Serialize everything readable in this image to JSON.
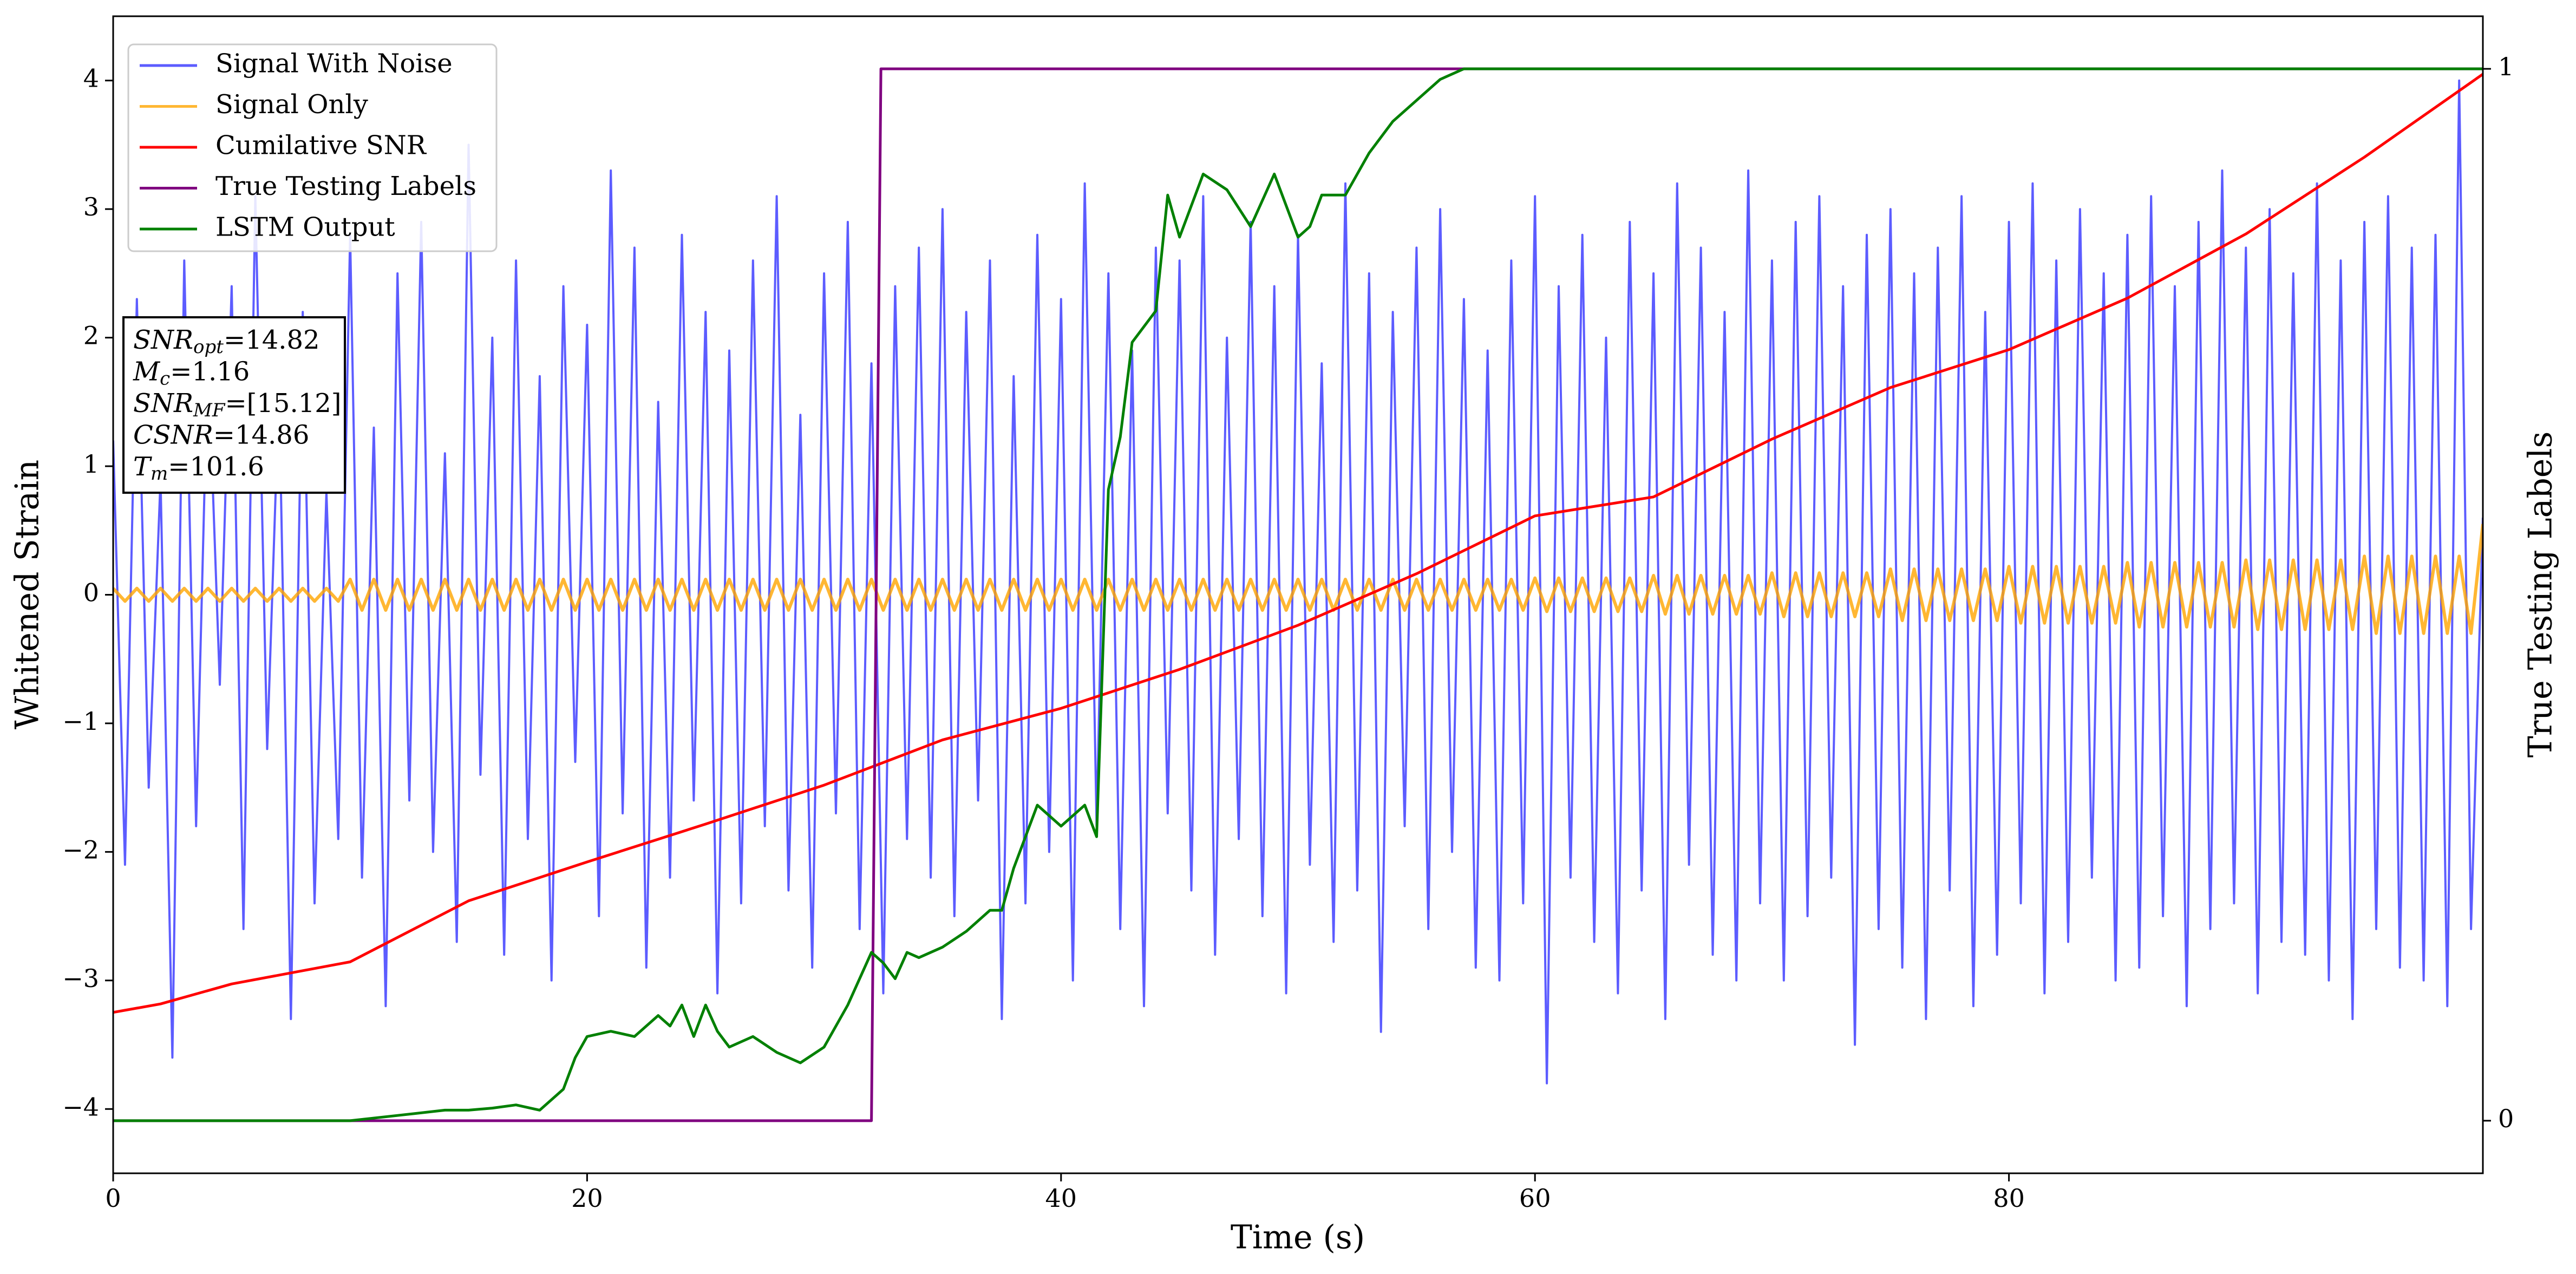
{
  "chart_data": {
    "type": "line",
    "xlabel": "Time (s)",
    "ylabel": "Whitened Strain",
    "y2label": "True Testing Labels",
    "xlim": [
      0,
      100
    ],
    "xticks": [
      0,
      20,
      40,
      60,
      80
    ],
    "ylim": [
      -4.5,
      4.5
    ],
    "yticks": [
      {
        "value": -4,
        "label": "−4"
      },
      {
        "value": -3,
        "label": "−3"
      },
      {
        "value": -2,
        "label": "−2"
      },
      {
        "value": -1,
        "label": "−1"
      },
      0,
      1,
      2,
      3,
      4
    ],
    "y2lim": [
      -0.05,
      1.05
    ],
    "y2ticks": [
      0,
      1
    ],
    "grid": false,
    "legend": "upper left",
    "x": [
      0,
      0.5,
      1,
      1.5,
      2,
      2.5,
      3,
      3.5,
      4,
      4.5,
      5,
      5.5,
      6,
      6.5,
      7,
      7.5,
      8,
      8.5,
      9,
      9.5,
      10,
      10.5,
      11,
      11.5,
      12,
      12.5,
      13,
      13.5,
      14,
      14.5,
      15,
      15.5,
      16,
      16.5,
      17,
      17.5,
      18,
      18.5,
      19,
      19.5,
      20,
      20.5,
      21,
      21.5,
      22,
      22.5,
      23,
      23.5,
      24,
      24.5,
      25,
      25.5,
      26,
      26.5,
      27,
      27.5,
      28,
      28.5,
      29,
      29.5,
      30,
      30.5,
      31,
      31.5,
      32,
      32.5,
      33,
      33.5,
      34,
      34.5,
      35,
      35.5,
      36,
      36.5,
      37,
      37.5,
      38,
      38.5,
      39,
      39.5,
      40,
      40.5,
      41,
      41.5,
      42,
      42.5,
      43,
      43.5,
      44,
      44.5,
      45,
      45.5,
      46,
      46.5,
      47,
      47.5,
      48,
      48.5,
      49,
      49.5,
      50,
      50.5,
      51,
      51.5,
      52,
      52.5,
      53,
      53.5,
      54,
      54.5,
      55,
      55.5,
      56,
      56.5,
      57,
      57.5,
      58,
      58.5,
      59,
      59.5,
      60,
      60.5,
      61,
      61.5,
      62,
      62.5,
      63,
      63.5,
      64,
      64.5,
      65,
      65.5,
      66,
      66.5,
      67,
      67.5,
      68,
      68.5,
      69,
      69.5,
      70,
      70.5,
      71,
      71.5,
      72,
      72.5,
      73,
      73.5,
      74,
      74.5,
      75,
      75.5,
      76,
      76.5,
      77,
      77.5,
      78,
      78.5,
      79,
      79.5,
      80,
      80.5,
      81,
      81.5,
      82,
      82.5,
      83,
      83.5,
      84,
      84.5,
      85,
      85.5,
      86,
      86.5,
      87,
      87.5,
      88,
      88.5,
      89,
      89.5,
      90,
      90.5,
      91,
      91.5,
      92,
      92.5,
      93,
      93.5,
      94,
      94.5,
      95,
      95.5,
      96,
      96.5,
      97,
      97.5,
      98,
      98.5,
      99,
      99.5,
      100
    ],
    "series": [
      {
        "name": "Signal With Noise",
        "color": "#3333ff",
        "values": [
          1.2,
          -2.1,
          2.3,
          -1.5,
          0.9,
          -3.6,
          2.6,
          -1.8,
          1.9,
          -0.7,
          2.4,
          -2.6,
          3.1,
          -1.2,
          1.6,
          -3.3,
          2.2,
          -2.4,
          0.8,
          -1.9,
          2.8,
          -2.2,
          1.3,
          -3.2,
          2.5,
          -1.6,
          2.9,
          -2.0,
          1.1,
          -2.7,
          3.5,
          -1.4,
          2.0,
          -2.8,
          2.6,
          -1.9,
          1.7,
          -3.0,
          2.4,
          -1.3,
          2.1,
          -2.5,
          3.3,
          -1.7,
          2.7,
          -2.9,
          1.5,
          -2.2,
          2.8,
          -1.6,
          2.2,
          -3.1,
          1.9,
          -2.4,
          2.6,
          -1.8,
          3.1,
          -2.3,
          1.4,
          -2.9,
          2.5,
          -1.7,
          2.9,
          -2.6,
          1.8,
          -3.1,
          2.4,
          -1.9,
          2.7,
          -2.2,
          3.0,
          -2.5,
          2.2,
          -1.6,
          2.6,
          -3.3,
          1.7,
          -2.4,
          2.8,
          -2.0,
          2.3,
          -3.0,
          3.2,
          -1.8,
          2.5,
          -2.6,
          1.9,
          -3.2,
          2.7,
          -1.7,
          2.6,
          -2.3,
          3.1,
          -2.8,
          2.0,
          -1.9,
          2.9,
          -2.5,
          2.4,
          -3.1,
          2.8,
          -2.1,
          1.8,
          -2.7,
          3.2,
          -2.3,
          2.5,
          -3.4,
          2.2,
          -1.8,
          2.7,
          -2.6,
          3.0,
          -2.0,
          2.3,
          -2.9,
          1.9,
          -3.0,
          2.6,
          -2.4,
          3.1,
          -3.8,
          2.4,
          -2.2,
          2.8,
          -2.7,
          2.0,
          -3.1,
          2.9,
          -2.3,
          2.5,
          -3.3,
          3.2,
          -2.1,
          2.7,
          -2.8,
          2.2,
          -3.0,
          3.3,
          -2.4,
          2.6,
          -3.0,
          2.9,
          -2.5,
          3.1,
          -2.2,
          2.4,
          -3.5,
          2.8,
          -2.6,
          3.0,
          -2.9,
          2.5,
          -3.3,
          2.7,
          -2.3,
          3.1,
          -3.2,
          2.2,
          -2.8,
          2.9,
          -2.4,
          3.2,
          -3.1,
          2.6,
          -2.7,
          3.0,
          -2.2,
          2.5,
          -3.0,
          2.8,
          -2.9,
          3.1,
          -2.5,
          2.4,
          -3.2,
          2.9,
          -2.6,
          3.3,
          -2.4,
          2.7,
          -3.1,
          3.0,
          -2.7,
          2.5,
          -2.8,
          3.2,
          -3.0,
          2.6,
          -3.3,
          2.9,
          -2.6,
          3.1,
          -2.9,
          2.7,
          -3.0,
          2.8,
          -3.2,
          4.0,
          -2.6,
          0.6
        ]
      },
      {
        "name": "Signal Only",
        "color": "orange",
        "values": [
          0.05,
          -0.05,
          0.05,
          -0.05,
          0.05,
          -0.05,
          0.05,
          -0.05,
          0.05,
          -0.05,
          0.05,
          -0.05,
          0.05,
          -0.05,
          0.05,
          -0.05,
          0.05,
          -0.05,
          0.05,
          -0.05,
          0.12,
          -0.12,
          0.12,
          -0.12,
          0.12,
          -0.12,
          0.12,
          -0.12,
          0.12,
          -0.12,
          0.12,
          -0.12,
          0.12,
          -0.12,
          0.12,
          -0.12,
          0.12,
          -0.12,
          0.12,
          -0.12,
          0.12,
          -0.12,
          0.12,
          -0.12,
          0.12,
          -0.12,
          0.12,
          -0.12,
          0.12,
          -0.12,
          0.12,
          -0.12,
          0.12,
          -0.12,
          0.12,
          -0.12,
          0.12,
          -0.12,
          0.12,
          -0.12,
          0.12,
          -0.12,
          0.12,
          -0.12,
          0.12,
          -0.12,
          0.12,
          -0.12,
          0.12,
          -0.12,
          0.12,
          -0.12,
          0.12,
          -0.12,
          0.12,
          -0.12,
          0.12,
          -0.12,
          0.12,
          -0.12,
          0.12,
          -0.12,
          0.12,
          -0.12,
          0.12,
          -0.12,
          0.12,
          -0.12,
          0.12,
          -0.12,
          0.12,
          -0.12,
          0.12,
          -0.12,
          0.12,
          -0.12,
          0.12,
          -0.12,
          0.12,
          -0.12,
          0.12,
          -0.12,
          0.12,
          -0.12,
          0.12,
          -0.12,
          0.12,
          -0.12,
          0.12,
          -0.12,
          0.12,
          -0.12,
          0.12,
          -0.12,
          0.12,
          -0.12,
          0.12,
          -0.12,
          0.12,
          -0.12,
          0.13,
          -0.13,
          0.13,
          -0.13,
          0.13,
          -0.13,
          0.13,
          -0.13,
          0.13,
          -0.13,
          0.15,
          -0.15,
          0.15,
          -0.15,
          0.15,
          -0.15,
          0.15,
          -0.15,
          0.15,
          -0.15,
          0.17,
          -0.17,
          0.17,
          -0.17,
          0.17,
          -0.17,
          0.17,
          -0.17,
          0.17,
          -0.17,
          0.2,
          -0.2,
          0.2,
          -0.2,
          0.2,
          -0.2,
          0.2,
          -0.2,
          0.2,
          -0.2,
          0.22,
          -0.22,
          0.22,
          -0.22,
          0.22,
          -0.22,
          0.22,
          -0.22,
          0.22,
          -0.22,
          0.25,
          -0.25,
          0.25,
          -0.25,
          0.25,
          -0.25,
          0.25,
          -0.25,
          0.25,
          -0.25,
          0.27,
          -0.27,
          0.27,
          -0.27,
          0.27,
          -0.27,
          0.27,
          -0.27,
          0.27,
          -0.27,
          0.3,
          -0.3,
          0.3,
          -0.3,
          0.3,
          -0.3,
          0.3,
          -0.3,
          0.3,
          -0.3,
          0.55
        ]
      },
      {
        "name": "Cumilative SNR",
        "color": "#ff0000",
        "axis": "y2",
        "x": [
          0,
          2,
          5,
          10,
          15,
          20,
          25,
          30,
          35,
          40,
          45,
          50,
          55,
          60,
          65,
          70,
          75,
          80,
          85,
          90,
          95,
          100
        ],
        "values": [
          0.103,
          0.111,
          0.13,
          0.151,
          0.209,
          0.246,
          0.282,
          0.319,
          0.362,
          0.392,
          0.429,
          0.471,
          0.52,
          0.575,
          0.593,
          0.648,
          0.697,
          0.733,
          0.782,
          0.843,
          0.916,
          0.995
        ]
      },
      {
        "name": "True Testing Labels",
        "color": "#800080",
        "axis": "y2",
        "x": [
          0,
          32,
          32.4,
          100
        ],
        "values": [
          0,
          0,
          1,
          1
        ]
      },
      {
        "name": "LSTM Output",
        "color": "#008000",
        "axis": "y2",
        "x": [
          0,
          10,
          12,
          14,
          15,
          16,
          17,
          18,
          19,
          19.5,
          20,
          21,
          22,
          23,
          23.5,
          24,
          24.5,
          25,
          25.5,
          26,
          27,
          28,
          29,
          30,
          31,
          32,
          32.5,
          33,
          33.5,
          34,
          35,
          36,
          37,
          37.5,
          38,
          39,
          40,
          41,
          41.5,
          42,
          42.5,
          43,
          44,
          44.5,
          45,
          46,
          47,
          48,
          49,
          50,
          50.5,
          51,
          52,
          53,
          54,
          55,
          56,
          57,
          58,
          60,
          66,
          100
        ],
        "values": [
          0,
          0,
          0.005,
          0.01,
          0.01,
          0.012,
          0.015,
          0.01,
          0.03,
          0.06,
          0.08,
          0.085,
          0.08,
          0.1,
          0.09,
          0.11,
          0.08,
          0.11,
          0.085,
          0.07,
          0.08,
          0.065,
          0.055,
          0.07,
          0.11,
          0.16,
          0.15,
          0.135,
          0.16,
          0.155,
          0.165,
          0.18,
          0.2,
          0.2,
          0.24,
          0.3,
          0.28,
          0.3,
          0.27,
          0.6,
          0.65,
          0.74,
          0.77,
          0.88,
          0.84,
          0.9,
          0.885,
          0.85,
          0.9,
          0.84,
          0.85,
          0.88,
          0.88,
          0.92,
          0.95,
          0.97,
          0.99,
          1.0,
          1.0,
          1.0,
          1.0,
          1.0
        ]
      }
    ],
    "annotation": [
      {
        "symbol": "SNR",
        "sub": "opt",
        "text": "=14.82"
      },
      {
        "symbol": "M",
        "sub": "c",
        "text": "=1.16"
      },
      {
        "symbol": "SNR",
        "sub": "MF",
        "text": "=[15.12]"
      },
      {
        "symbol": "CSNR",
        "text": "=14.86"
      },
      {
        "symbol": "T",
        "sub": "m",
        "text": "=101.6"
      }
    ]
  }
}
